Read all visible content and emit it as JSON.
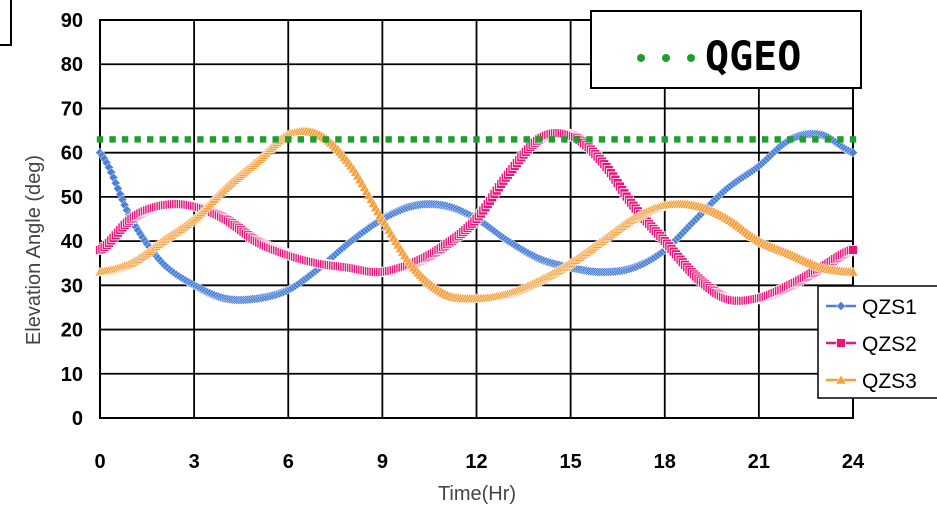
{
  "chart_data": {
    "type": "line",
    "xlabel": "Time(Hr)",
    "ylabel": "Elevation Angle (deg)",
    "xlim": [
      0,
      24
    ],
    "ylim": [
      0,
      90
    ],
    "x_ticks": [
      0,
      3,
      6,
      9,
      12,
      15,
      18,
      21,
      24
    ],
    "y_ticks": [
      0,
      10,
      20,
      30,
      40,
      50,
      60,
      70,
      80,
      90
    ],
    "grid": true,
    "x": [
      0,
      1,
      2,
      3,
      4,
      5,
      6,
      7,
      8,
      9,
      10,
      11,
      12,
      13,
      14,
      15,
      16,
      17,
      18,
      19,
      20,
      21,
      22,
      23,
      24
    ],
    "series": [
      {
        "name": "QZS1",
        "color": "#4A7FD8",
        "marker": "diamond",
        "values": [
          60,
          45,
          35,
          30,
          27,
          27,
          29,
          34,
          40,
          45,
          48,
          48,
          45,
          40,
          36,
          34,
          33,
          34,
          38,
          45,
          52,
          57,
          63,
          64,
          60
        ]
      },
      {
        "name": "QZS2",
        "color": "#E8157A",
        "marker": "square",
        "values": [
          38,
          45,
          48,
          48,
          45,
          40,
          37,
          35,
          34,
          33,
          35,
          39,
          45,
          55,
          63,
          64,
          58,
          48,
          40,
          32,
          27,
          27,
          30,
          34,
          38
        ]
      },
      {
        "name": "QZS3",
        "color": "#F5A03C",
        "marker": "triangle",
        "values": [
          33,
          35,
          40,
          45,
          52,
          58,
          64,
          64,
          57,
          45,
          34,
          28,
          27,
          28,
          31,
          35,
          40,
          45,
          48,
          48,
          45,
          40,
          37,
          34,
          33
        ]
      },
      {
        "name": "QGEO",
        "color": "#1E9E2E",
        "marker": "dot",
        "values": [
          63,
          63,
          63,
          63,
          63,
          63,
          63,
          63,
          63,
          63,
          63,
          63,
          63,
          63,
          63,
          63,
          63,
          63,
          63,
          63,
          63,
          63,
          63,
          63,
          63
        ]
      }
    ],
    "legend": {
      "qgeo_box_label": "QGEO",
      "qgeo_position": "top-right",
      "entries_position": "right"
    }
  }
}
